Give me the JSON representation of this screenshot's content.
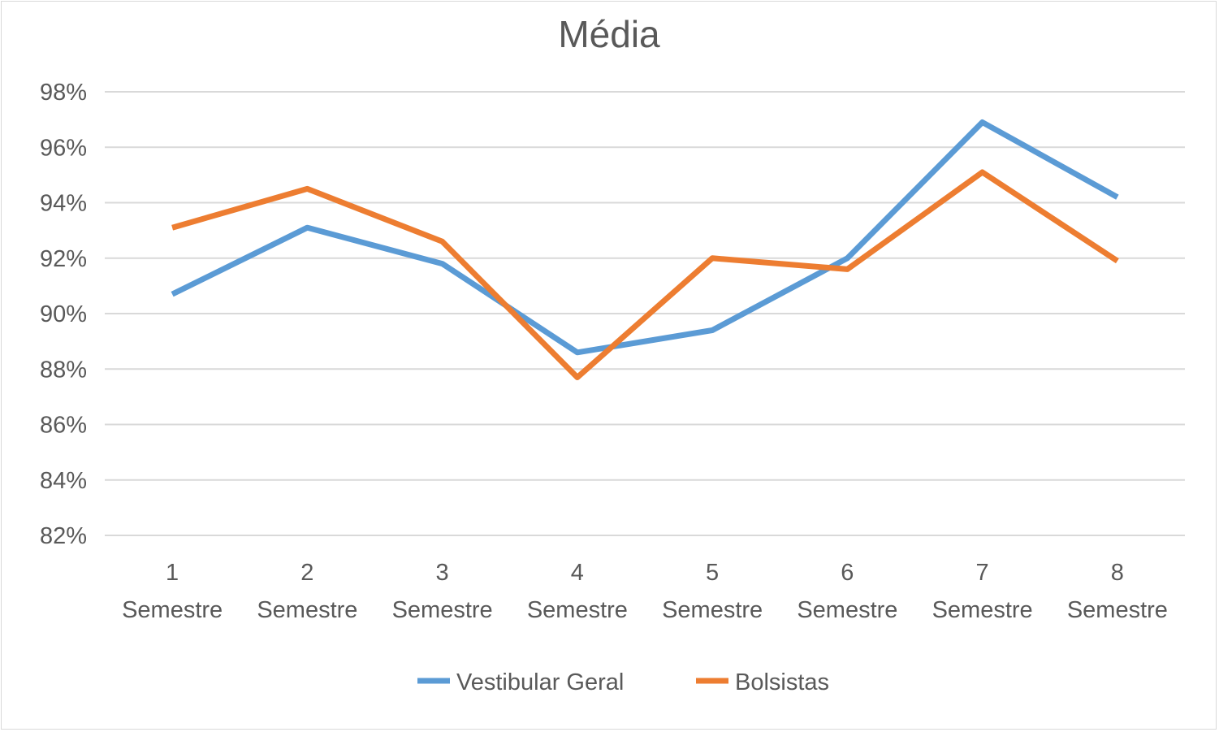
{
  "chart_data": {
    "type": "line",
    "title": "Média",
    "xlabel": "",
    "ylabel": "",
    "categories": [
      [
        "1",
        "Semestre"
      ],
      [
        "2",
        "Semestre"
      ],
      [
        "3",
        "Semestre"
      ],
      [
        "4",
        "Semestre"
      ],
      [
        "5",
        "Semestre"
      ],
      [
        "6",
        "Semestre"
      ],
      [
        "7",
        "Semestre"
      ],
      [
        "8",
        "Semestre"
      ]
    ],
    "y_ticks": [
      "82%",
      "84%",
      "86%",
      "88%",
      "90%",
      "92%",
      "94%",
      "96%",
      "98%"
    ],
    "ylim": [
      82,
      98
    ],
    "grid": true,
    "legend_position": "bottom",
    "series": [
      {
        "name": "Vestibular Geral",
        "color": "#5b9bd5",
        "values": [
          90.7,
          93.1,
          91.8,
          88.6,
          89.4,
          92.0,
          96.9,
          94.2
        ]
      },
      {
        "name": "Bolsistas",
        "color": "#ed7d31",
        "values": [
          93.1,
          94.5,
          92.6,
          87.7,
          92.0,
          91.6,
          95.1,
          91.9
        ]
      }
    ]
  }
}
